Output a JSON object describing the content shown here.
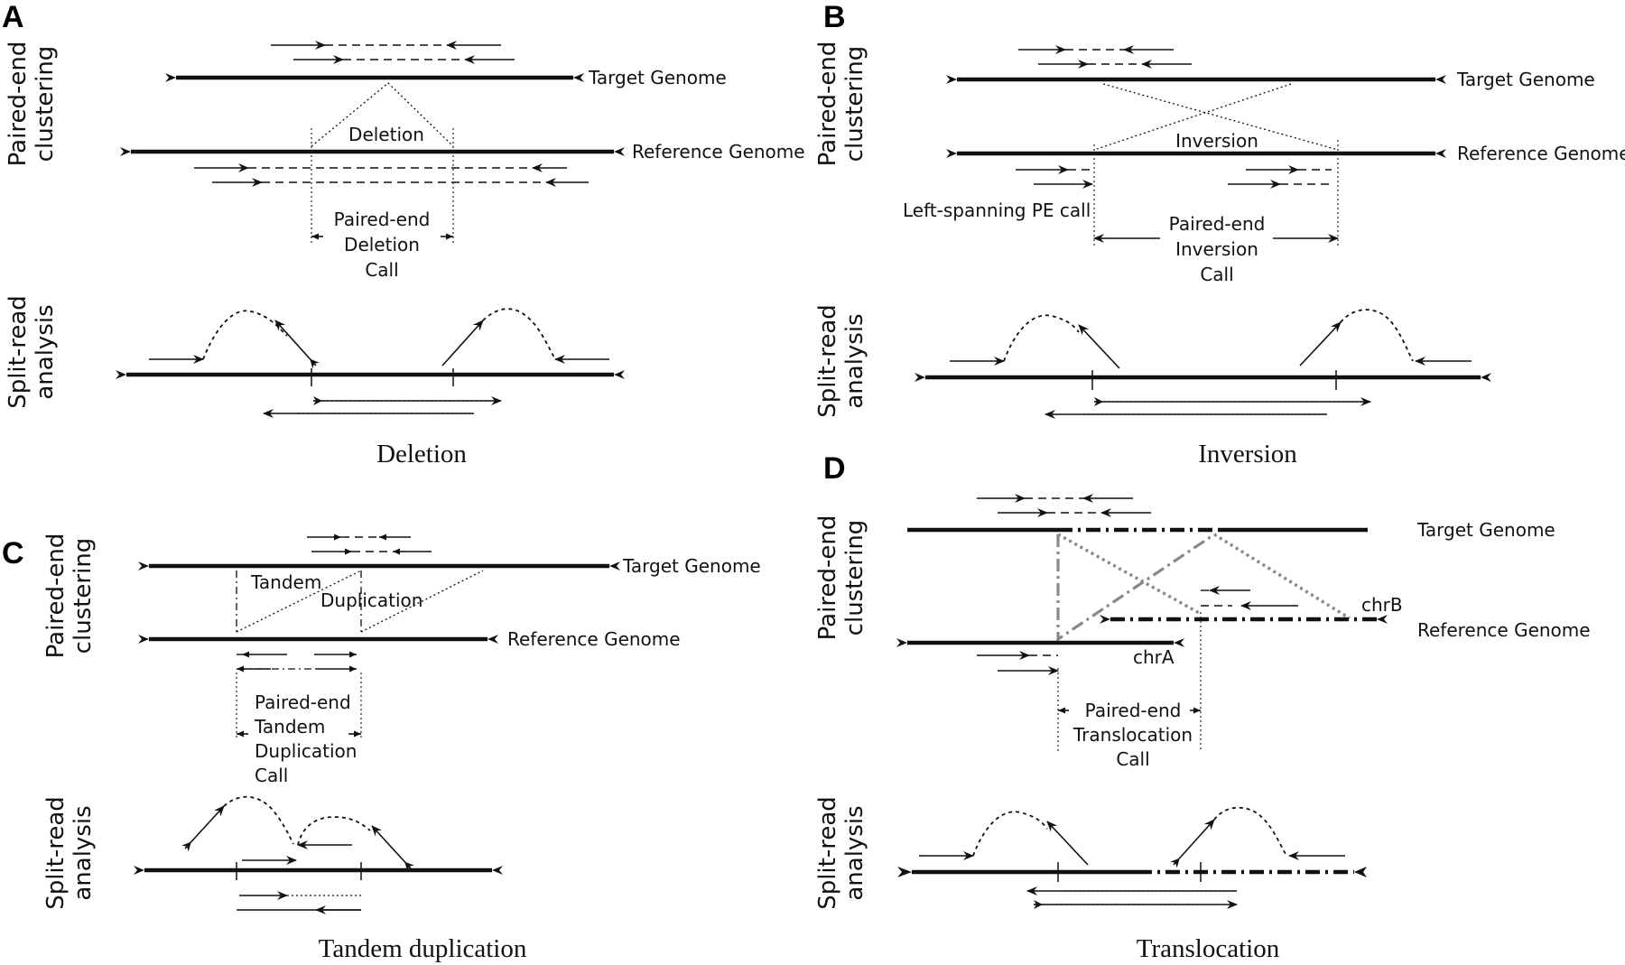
{
  "panels": {
    "A": {
      "letter": "A",
      "side_top": [
        "Paired-end",
        "clustering"
      ],
      "side_bottom": [
        "Split-read",
        "analysis"
      ],
      "target": "Target Genome",
      "reference": "Reference Genome",
      "event_label": "Deletion",
      "call": [
        "Paired-end",
        "Deletion",
        "Call"
      ],
      "caption": "Deletion"
    },
    "B": {
      "letter": "B",
      "side_top": [
        "Paired-end",
        "clustering"
      ],
      "side_bottom": [
        "Split-read",
        "analysis"
      ],
      "target": "Target Genome",
      "reference": "Reference Genome",
      "event_label": "Inversion",
      "left_note": "Left-spanning PE call",
      "call": [
        "Paired-end",
        "Inversion",
        "Call"
      ],
      "caption": "Inversion"
    },
    "C": {
      "letter": "C",
      "side_top": [
        "Paired-end",
        "clustering"
      ],
      "side_bottom": [
        "Split-read",
        "analysis"
      ],
      "target": "Target Genome",
      "reference": "Reference Genome",
      "event_label_1": "Tandem",
      "event_label_2": "Duplication",
      "call": [
        "Paired-end",
        "Tandem",
        "Duplication",
        "Call"
      ],
      "caption": "Tandem duplication"
    },
    "D": {
      "letter": "D",
      "side_top": [
        "Paired-end",
        "clustering"
      ],
      "side_bottom": [
        "Split-read",
        "analysis"
      ],
      "target": "Target Genome",
      "reference": "Reference Genome",
      "chrA": "chrA",
      "chrB": "chrB",
      "call": [
        "Paired-end",
        "Translocation",
        "Call"
      ],
      "caption": "Translocation"
    }
  }
}
